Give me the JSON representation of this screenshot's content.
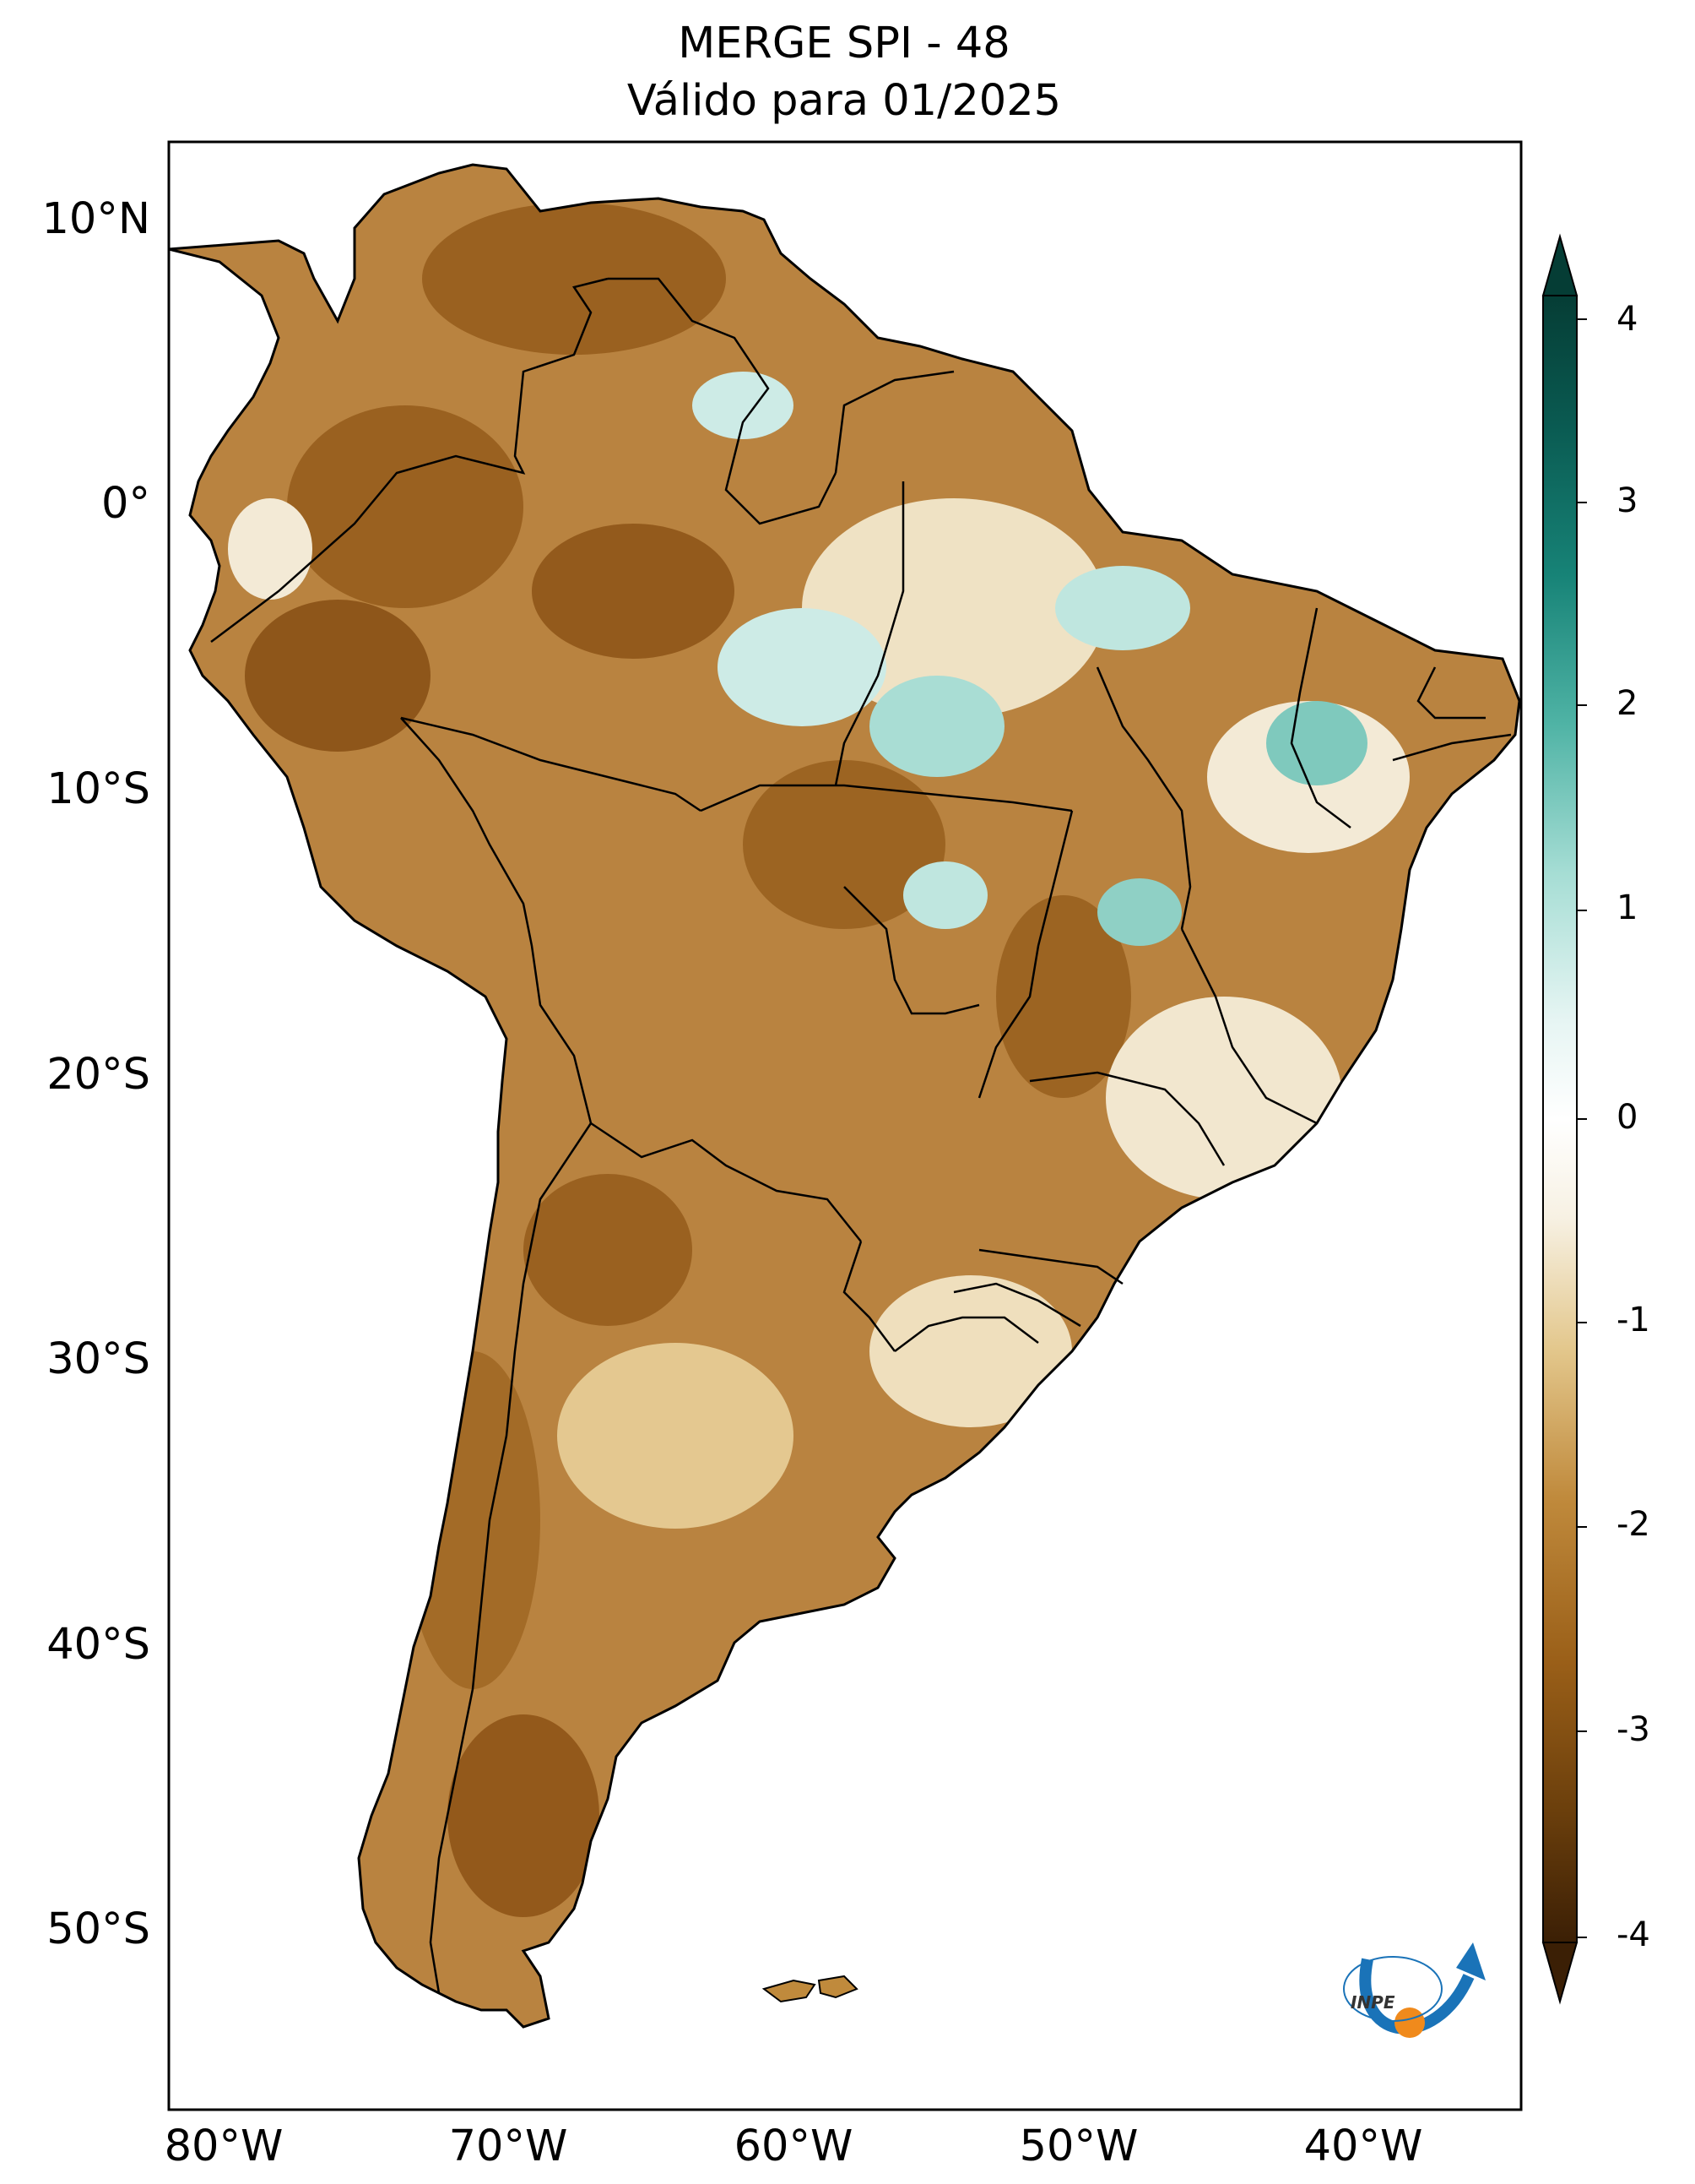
{
  "title": {
    "line1": "MERGE   SPI - 48",
    "line2": "Válido para 01/2025"
  },
  "axes": {
    "lat_labels": [
      "10°N",
      "0°",
      "10°S",
      "20°S",
      "30°S",
      "40°S",
      "50°S"
    ],
    "lon_labels": [
      "80°W",
      "70°W",
      "60°W",
      "50°W",
      "40°W"
    ]
  },
  "colorbar": {
    "labels": [
      "4",
      "3",
      "2",
      "1",
      "0",
      "-1",
      "-2",
      "-3",
      "-4"
    ],
    "range": [
      -4,
      4
    ],
    "colors": [
      "#3b1f05",
      "#6b3f0c",
      "#9a5f18",
      "#c08a3c",
      "#e3c78c",
      "#f7f1e3",
      "#ffffff",
      "#e6f5f3",
      "#a5ddd4",
      "#4fb3a5",
      "#178377",
      "#0a5b52",
      "#053d35"
    ]
  },
  "map": {
    "region": "South America",
    "colors": {
      "dry": "#9c6620",
      "mid": "#d8b272",
      "wet": "#5fb8aa",
      "border": "#000000"
    }
  },
  "logo": {
    "text": "INPE"
  }
}
